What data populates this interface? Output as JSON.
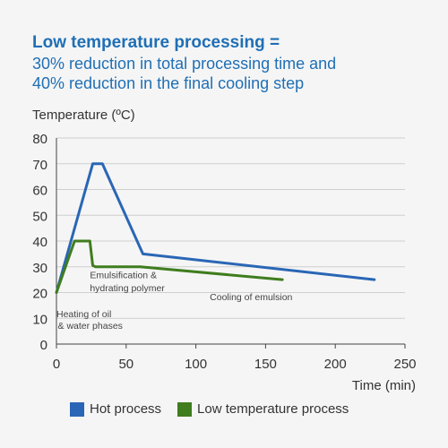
{
  "title": {
    "line1": "Low temperature processing =",
    "line2": "30% reduction in total processing time and",
    "line3": "40% reduction in the final cooling step"
  },
  "colors": {
    "hot": "#2a66b5",
    "low": "#3f7d1e",
    "title": "#1f6fb5"
  },
  "chart_data": {
    "type": "line",
    "ylabel": "Temperature (ºC)",
    "xlabel": "Time (min)",
    "xlim": [
      0,
      250
    ],
    "ylim": [
      0,
      80
    ],
    "xticks": [
      0,
      50,
      100,
      150,
      200,
      250
    ],
    "yticks": [
      0,
      10,
      20,
      30,
      40,
      50,
      60,
      70,
      80
    ],
    "grid": "horizontal",
    "legend_position": "bottom",
    "series": [
      {
        "name": "Hot process",
        "color": "#2a66b5",
        "points": [
          [
            0,
            20
          ],
          [
            26,
            70
          ],
          [
            33,
            70
          ],
          [
            62,
            35
          ],
          [
            228,
            25
          ]
        ]
      },
      {
        "name": "Low temperature process",
        "color": "#3f7d1e",
        "points": [
          [
            0,
            20
          ],
          [
            13,
            40
          ],
          [
            24,
            40
          ],
          [
            26,
            30.5
          ],
          [
            28,
            30
          ],
          [
            60,
            30
          ],
          [
            162,
            25
          ]
        ]
      }
    ],
    "annotations": [
      {
        "text": "Emulsification &",
        "x": 24,
        "y": 25.5
      },
      {
        "text": "hydrating polymer",
        "x": 24,
        "y": 20.5
      },
      {
        "text": "Cooling of emulsion",
        "x": 110,
        "y": 17
      },
      {
        "text": "Heating of oil",
        "x": 0,
        "y": 10.5
      },
      {
        "text": "& water phases",
        "x": 1,
        "y": 6
      }
    ]
  }
}
